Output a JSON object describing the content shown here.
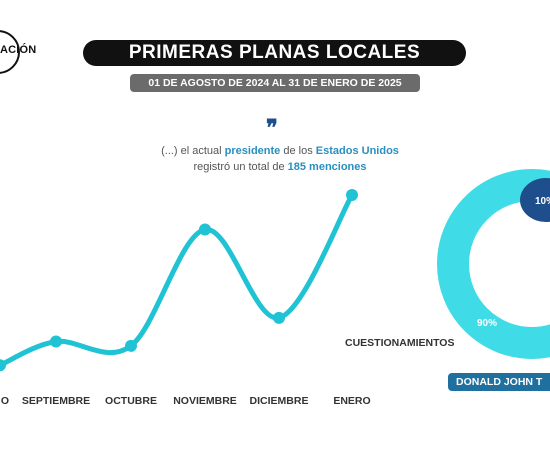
{
  "brand": {
    "logo_text": "ACIÓN"
  },
  "header": {
    "title": "PRIMERAS PLANAS LOCALES",
    "subtitle": "01 DE AGOSTO DE 2024 AL 31 DE ENERO DE 2025"
  },
  "quote": {
    "icon": "quote-icon",
    "part1": "(...) el actual ",
    "hl1": "presidente",
    "part2": " de los ",
    "hl2": "Estados Unidos",
    "part3": "registró un total de ",
    "hl3": "185 menciones"
  },
  "colors": {
    "line": "#1fc3d3",
    "donut_main": "#3fdbe6",
    "donut_small": "#1e4f8c",
    "pill_dark": "#111111",
    "pill_name": "#1f6f9f"
  },
  "chart_data": [
    {
      "type": "line",
      "categories": [
        "AGOSTO",
        "SEPTIEMBRE",
        "OCTUBRE",
        "NOVIEMBRE",
        "DICIEMBRE",
        "ENERO"
      ],
      "category_labels": [
        "O",
        "SEPTIEMBRE",
        "OCTUBRE",
        "NOVIEMBRE",
        "DICIEMBRE",
        "ENERO"
      ],
      "values": [
        5,
        16,
        14,
        68,
        27,
        84
      ],
      "grid": false
    },
    {
      "type": "pie",
      "donut": true,
      "label": "CUESTIONAMIENTOS",
      "slices": [
        {
          "label": "90%",
          "value": 90
        },
        {
          "label": "10%",
          "value": 10
        }
      ]
    }
  ],
  "footer": {
    "name_label": "DONALD JOHN T"
  }
}
